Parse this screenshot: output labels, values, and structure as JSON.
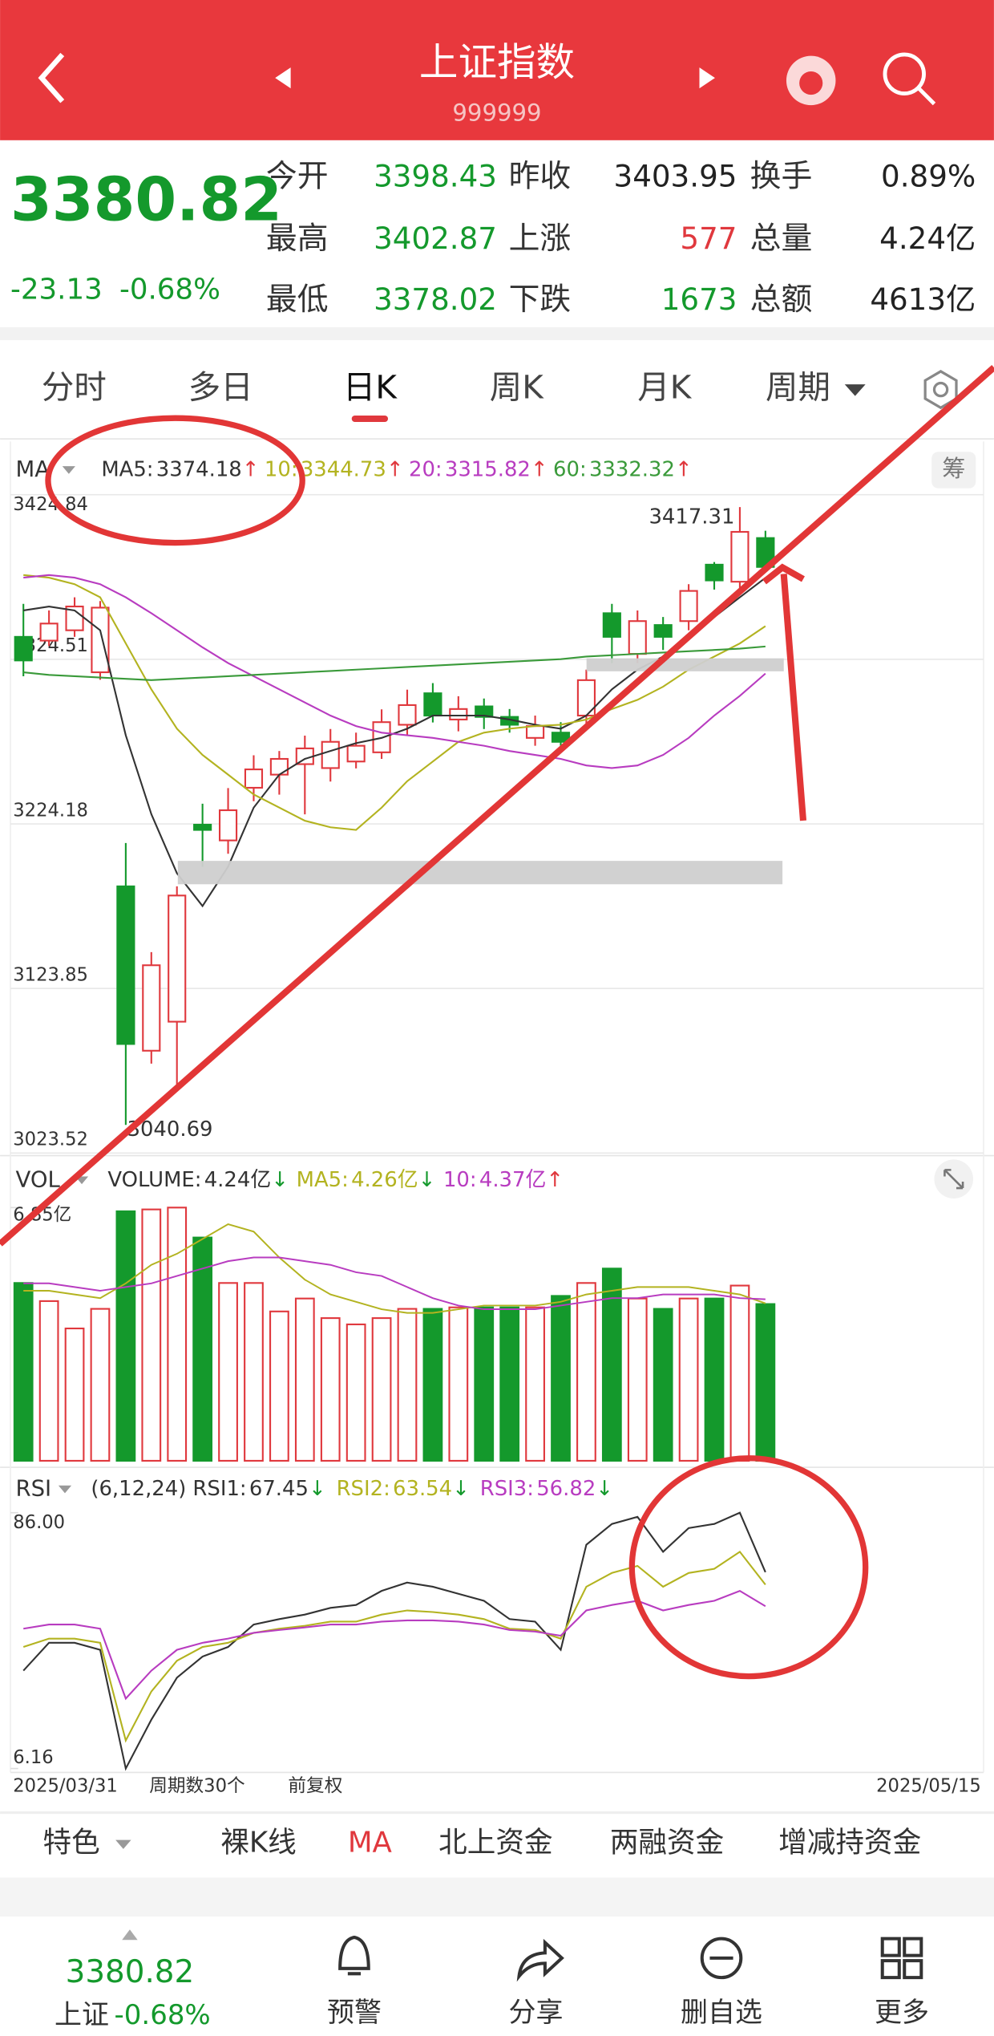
{
  "header": {
    "title": "上证指数",
    "code": "999999"
  },
  "quote": {
    "price": "3380.82",
    "change": "-23.13",
    "change_pct": "-0.68%",
    "stats": [
      [
        {
          "label": "今开",
          "value": "3398.43",
          "color": "#14992c"
        },
        {
          "label": "昨收",
          "value": "3403.95",
          "color": "#222222"
        },
        {
          "label": "换手",
          "value": "0.89%",
          "color": "#222222"
        }
      ],
      [
        {
          "label": "最高",
          "value": "3402.87",
          "color": "#14992c"
        },
        {
          "label": "上涨",
          "value": "577",
          "color": "#e0383d"
        },
        {
          "label": "总量",
          "value": "4.24亿",
          "color": "#222222"
        }
      ],
      [
        {
          "label": "最低",
          "value": "3378.02",
          "color": "#14992c"
        },
        {
          "label": "下跌",
          "value": "1673",
          "color": "#14992c"
        },
        {
          "label": "总额",
          "value": "4613亿",
          "color": "#222222"
        }
      ]
    ]
  },
  "tabs": [
    "分时",
    "多日",
    "日K",
    "周K",
    "月K",
    "周期"
  ],
  "active_tab": 2,
  "chip_button": "筹",
  "chart_data": [
    {
      "type": "candlestick",
      "indicator": "MA",
      "x": [
        "2025/03/31",
        null,
        null,
        null,
        null,
        null,
        null,
        null,
        null,
        null,
        null,
        null,
        null,
        null,
        null,
        null,
        null,
        null,
        null,
        null,
        null,
        null,
        null,
        null,
        null,
        null,
        null,
        null,
        null,
        "2025/05/15"
      ],
      "open": [
        3338.2,
        3335.9,
        3342.2,
        3316.6,
        3186.1,
        3085.9,
        3103.6,
        3223.7,
        3214.1,
        3246.2,
        3254.2,
        3260.6,
        3258.2,
        3262.2,
        3267.8,
        3284.6,
        3303.8,
        3287.8,
        3295.8,
        3289.4,
        3276.6,
        3279.8,
        3290.2,
        3352.6,
        3327.8,
        3345.4,
        3347.8,
        3382.2,
        3371.8,
        3398.43
      ],
      "high": [
        3358.3,
        3354.3,
        3362.3,
        3360.0,
        3212.5,
        3146.0,
        3186.1,
        3236.5,
        3246.0,
        3266.0,
        3268.6,
        3278.0,
        3282.0,
        3279.8,
        3294.0,
        3306.0,
        3310.0,
        3302.0,
        3300.6,
        3294.2,
        3290.2,
        3286.2,
        3318.2,
        3358.3,
        3354.3,
        3350.3,
        3370.3,
        3383.8,
        3417.31,
        3402.87
      ],
      "low": [
        3314.2,
        3332.6,
        3338.2,
        3312.0,
        3040.69,
        3078.0,
        3062.0,
        3198.0,
        3206.0,
        3238.0,
        3242.0,
        3230.0,
        3250.0,
        3258.0,
        3263.8,
        3278.0,
        3286.0,
        3280.6,
        3282.0,
        3279.8,
        3271.8,
        3271.8,
        3284.6,
        3322.2,
        3322.2,
        3330.2,
        3342.2,
        3367.0,
        3368.0,
        3378.02
      ],
      "close": [
        3323.8,
        3346.3,
        3356.7,
        3356.0,
        3090.0,
        3138.0,
        3180.5,
        3220.5,
        3232.5,
        3257.4,
        3263.8,
        3270.2,
        3274.2,
        3271.8,
        3286.2,
        3296.6,
        3290.2,
        3294.2,
        3289.4,
        3284.6,
        3283.8,
        3274.2,
        3311.8,
        3338.2,
        3347.8,
        3338.2,
        3366.2,
        3372.6,
        3402.2,
        3380.82
      ],
      "up_color": "#e0383d",
      "down_color": "#14992c",
      "ylim": [
        3023.52,
        3424.84
      ],
      "yticks": [
        3023.52,
        3123.85,
        3224.18,
        3324.51,
        3424.84
      ],
      "grid": true,
      "lines": [
        {
          "name": "MA5:",
          "color": "#333333",
          "trend": "↑",
          "values": [
            3354.3,
            3356.7,
            3354.3,
            3342.2,
            3278.2,
            3230.1,
            3194.1,
            3174.1,
            3198.1,
            3234.1,
            3254.2,
            3263.8,
            3268.6,
            3273.4,
            3276.6,
            3282.2,
            3290.2,
            3290.2,
            3290.2,
            3287.8,
            3284.6,
            3282.2,
            3290.2,
            3306.2,
            3318.2,
            3326.2,
            3338.2,
            3350.3,
            3362.3,
            3374.18
          ]
        },
        {
          "name": "10:",
          "color": "#b3b320",
          "trend": "↑",
          "values": [
            3375.9,
            3374.3,
            3370.3,
            3362.3,
            3334.2,
            3306.2,
            3282.2,
            3266.2,
            3254.2,
            3242.1,
            3234.1,
            3226.1,
            3222.1,
            3220.5,
            3234.1,
            3250.2,
            3262.2,
            3274.2,
            3279.8,
            3282.2,
            3283.8,
            3284.6,
            3287.8,
            3294.2,
            3299.8,
            3307.8,
            3318.2,
            3326.2,
            3334.2,
            3344.73
          ]
        },
        {
          "name": "20:",
          "color": "#b83cc0",
          "trend": "↑",
          "values": [
            3374.3,
            3375.9,
            3374.3,
            3370.3,
            3362.3,
            3352.6,
            3342.2,
            3331.8,
            3322.2,
            3314.2,
            3306.2,
            3298.2,
            3290.2,
            3283.8,
            3279.8,
            3278.2,
            3276.6,
            3274.2,
            3271.8,
            3268.6,
            3266.2,
            3263.8,
            3259.8,
            3258.2,
            3259.8,
            3266.2,
            3276.6,
            3290.2,
            3302.2,
            3315.82
          ]
        },
        {
          "name": "60:",
          "color": "#3a9a3a",
          "trend": "↑",
          "values": [
            3316.6,
            3315.0,
            3314.2,
            3313.4,
            3312.6,
            3311.8,
            3312.6,
            3313.4,
            3314.2,
            3315.0,
            3315.8,
            3316.6,
            3317.4,
            3318.2,
            3319.0,
            3319.8,
            3320.6,
            3321.4,
            3322.2,
            3323.0,
            3323.8,
            3324.6,
            3326.2,
            3327.0,
            3327.8,
            3328.6,
            3329.4,
            3330.2,
            3331.0,
            3332.32
          ]
        }
      ]
    },
    {
      "type": "bar",
      "indicator": "VOL",
      "name": "VOLUME:",
      "label": "4.24亿",
      "trend": "↓",
      "values": [
        4.81,
        4.32,
        3.58,
        4.11,
        6.75,
        6.8,
        6.85,
        6.04,
        4.81,
        4.81,
        4.04,
        4.39,
        3.86,
        3.69,
        3.86,
        4.11,
        4.11,
        4.15,
        4.15,
        4.15,
        4.15,
        4.46,
        4.81,
        5.2,
        4.39,
        4.11,
        4.39,
        4.39,
        4.74,
        4.24
      ],
      "ylim": [
        0,
        6.85
      ],
      "yticks": [
        {
          "value": 6.85,
          "label": "6.85亿"
        }
      ],
      "lines": [
        {
          "name": "MA5:",
          "label": "4.26亿",
          "trend": "↓",
          "color": "#b3b320",
          "values": [
            4.6,
            4.6,
            4.5,
            4.4,
            4.8,
            5.3,
            5.6,
            6.0,
            6.4,
            6.2,
            5.5,
            4.9,
            4.5,
            4.3,
            4.1,
            4.0,
            4.0,
            4.1,
            4.2,
            4.2,
            4.2,
            4.3,
            4.5,
            4.6,
            4.7,
            4.7,
            4.7,
            4.6,
            4.5,
            4.26
          ]
        },
        {
          "name": "10:",
          "label": "4.37亿",
          "trend": "↑",
          "color": "#b83cc0",
          "values": [
            4.8,
            4.8,
            4.7,
            4.6,
            4.7,
            4.8,
            5.0,
            5.2,
            5.4,
            5.5,
            5.5,
            5.4,
            5.3,
            5.1,
            5.0,
            4.7,
            4.4,
            4.2,
            4.1,
            4.1,
            4.1,
            4.2,
            4.3,
            4.4,
            4.4,
            4.5,
            4.5,
            4.5,
            4.4,
            4.37
          ]
        }
      ]
    },
    {
      "type": "line",
      "indicator": "RSI",
      "params": "(6,12,24)",
      "ylim": [
        6.16,
        86
      ],
      "yticks": [
        6.16,
        {
          "value": 86,
          "label": "86.00"
        }
      ],
      "series": [
        {
          "name": "RSI1:",
          "color": "#333333",
          "trend": "↓",
          "values": [
            36.7,
            45.4,
            45.4,
            43.2,
            6.16,
            21.4,
            34.5,
            41.1,
            44.1,
            51.1,
            52.8,
            54.2,
            56.3,
            57.2,
            61.6,
            64.2,
            62.9,
            60.7,
            58.5,
            52.8,
            52.0,
            43.2,
            76.0,
            82.5,
            84.7,
            73.8,
            81.2,
            82.5,
            86.0,
            67.45
          ]
        },
        {
          "name": "RSI2:",
          "color": "#b3b320",
          "trend": "↓",
          "values": [
            44.1,
            46.7,
            46.7,
            45.4,
            14.9,
            30.2,
            39.8,
            44.1,
            45.4,
            48.5,
            49.8,
            50.7,
            52.0,
            52.0,
            54.2,
            55.5,
            55.0,
            54.2,
            52.8,
            49.8,
            49.4,
            46.7,
            62.9,
            67.2,
            69.4,
            62.9,
            67.2,
            68.5,
            73.8,
            63.54
          ]
        },
        {
          "name": "RSI3:",
          "color": "#b83cc0",
          "trend": "↓",
          "values": [
            49.8,
            51.1,
            51.1,
            49.8,
            28.0,
            36.7,
            43.2,
            45.4,
            46.7,
            48.5,
            49.4,
            50.2,
            51.1,
            51.1,
            52.0,
            52.4,
            52.4,
            52.0,
            51.1,
            49.4,
            48.9,
            47.6,
            55.5,
            57.2,
            58.5,
            55.5,
            57.2,
            58.5,
            61.6,
            56.82
          ]
        }
      ]
    }
  ],
  "axis_notes": [
    "周期数30个",
    "前复权"
  ],
  "indicator_tabs": [
    "特色",
    "裸K线",
    "MA",
    "北上资金",
    "两融资金",
    "增减持资金"
  ],
  "active_indicator": 2,
  "bottom_nav": {
    "price": "3380.82",
    "name": "上证",
    "change_pct": "-0.68%",
    "items": [
      "预警",
      "分享",
      "删自选",
      "更多"
    ]
  }
}
